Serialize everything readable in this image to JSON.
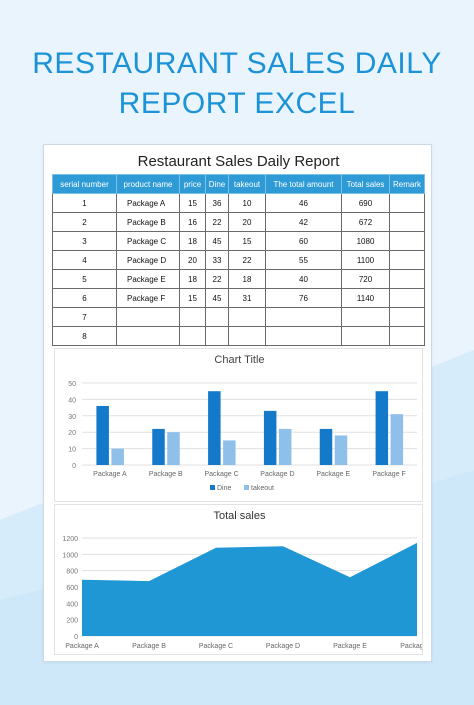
{
  "banner": {
    "line1": "RESTAURANT SALES DAILY",
    "line2": "REPORT EXCEL"
  },
  "report": {
    "title": "Restaurant Sales Daily Report",
    "headers": [
      "serial number",
      "product name",
      "price",
      "Dine",
      "takeout",
      "The total amount",
      "Total sales",
      "Remark"
    ],
    "rows": [
      [
        "1",
        "Package A",
        "15",
        "36",
        "10",
        "46",
        "690",
        ""
      ],
      [
        "2",
        "Package B",
        "16",
        "22",
        "20",
        "42",
        "672",
        ""
      ],
      [
        "3",
        "Package C",
        "18",
        "45",
        "15",
        "60",
        "1080",
        ""
      ],
      [
        "4",
        "Package D",
        "20",
        "33",
        "22",
        "55",
        "1100",
        ""
      ],
      [
        "5",
        "Package E",
        "18",
        "22",
        "18",
        "40",
        "720",
        ""
      ],
      [
        "6",
        "Package F",
        "15",
        "45",
        "31",
        "76",
        "1140",
        ""
      ],
      [
        "7",
        "",
        "",
        "",
        "",
        "",
        "",
        ""
      ],
      [
        "8",
        "",
        "",
        "",
        "",
        "",
        "",
        ""
      ]
    ]
  },
  "colors": {
    "banner": "#1b93d6",
    "header": "#2e9bd6",
    "dine": "#1479c9",
    "takeout": "#8fc0ea",
    "area": "#1f97d4"
  },
  "chart_data": [
    {
      "type": "bar",
      "title": "Chart Title",
      "categories": [
        "Package A",
        "Package B",
        "Package C",
        "Package D",
        "Package E",
        "Package F"
      ],
      "series": [
        {
          "name": "Dine",
          "values": [
            36,
            22,
            45,
            33,
            22,
            45
          ]
        },
        {
          "name": "takeout",
          "values": [
            10,
            20,
            15,
            22,
            18,
            31
          ]
        }
      ],
      "ylim": [
        0,
        50
      ],
      "yticks": [
        "0",
        "10",
        "20",
        "30",
        "40",
        "50"
      ],
      "grid": true,
      "legend": "bottom"
    },
    {
      "type": "area",
      "title": "Total sales",
      "categories": [
        "Package A",
        "Package B",
        "Package C",
        "Package D",
        "Package E",
        "Package F"
      ],
      "values": [
        690,
        672,
        1080,
        1100,
        720,
        1140
      ],
      "ylim": [
        0,
        1200
      ],
      "yticks": [
        "0",
        "200",
        "400",
        "600",
        "800",
        "1000",
        "1200"
      ],
      "grid": true
    }
  ]
}
